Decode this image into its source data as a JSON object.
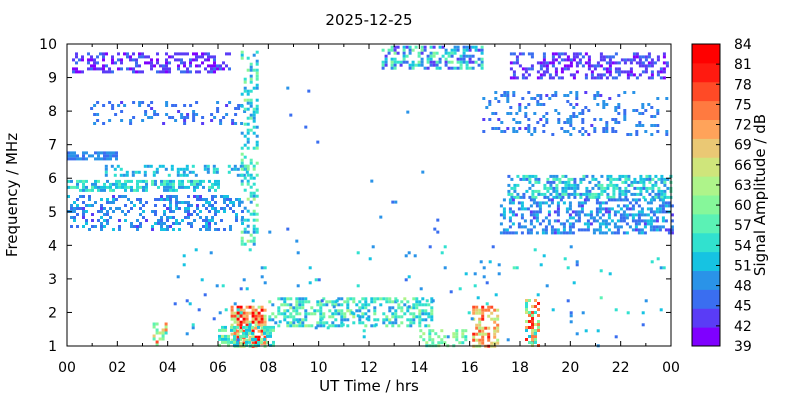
{
  "chart_data": {
    "type": "heatmap",
    "title": "2025-12-25",
    "xlabel": "UT Time / hrs",
    "ylabel": "Frequency / MHz",
    "colorbar_label": "Signal Amplitude / dB",
    "xlim": [
      0,
      24
    ],
    "ylim": [
      1,
      10
    ],
    "x_ticks": [
      "00",
      "02",
      "04",
      "06",
      "08",
      "10",
      "12",
      "14",
      "16",
      "18",
      "20",
      "22",
      "00"
    ],
    "y_ticks": [
      "1",
      "2",
      "3",
      "4",
      "5",
      "6",
      "7",
      "8",
      "9",
      "10"
    ],
    "colorbar_ticks": [
      "39",
      "42",
      "45",
      "48",
      "51",
      "54",
      "57",
      "60",
      "63",
      "66",
      "69",
      "72",
      "75",
      "78",
      "81",
      "84"
    ],
    "colorbar_range": [
      39,
      84
    ],
    "colorscale": [
      "#7f00ff",
      "#5a3cf6",
      "#3a6ef0",
      "#2a93e8",
      "#16c3e2",
      "#31e1cf",
      "#5bf2b5",
      "#86f79a",
      "#aef48a",
      "#cfe57b",
      "#eac874",
      "#ffa35a",
      "#ff7a40",
      "#ff4a26",
      "#ff1a10",
      "#ff0000"
    ],
    "regions": [
      {
        "name": "band-9.5",
        "x": [
          0.2,
          6.4
        ],
        "y": [
          9.15,
          9.75
        ],
        "amp": [
          40,
          46
        ],
        "density": 0.45
      },
      {
        "name": "band-9.5b",
        "x": [
          17.6,
          23.9
        ],
        "y": [
          9.0,
          9.75
        ],
        "amp": [
          40,
          47
        ],
        "density": 0.45
      },
      {
        "name": "band-9.7-mid",
        "x": [
          12.5,
          16.5
        ],
        "y": [
          9.3,
          9.95
        ],
        "amp": [
          42,
          60
        ],
        "density": 0.55
      },
      {
        "name": "band-7.8",
        "x": [
          0.8,
          7.0
        ],
        "y": [
          7.6,
          8.3
        ],
        "amp": [
          44,
          50
        ],
        "density": 0.2
      },
      {
        "name": "band-7.8b",
        "x": [
          16.5,
          23.8
        ],
        "y": [
          7.3,
          8.6
        ],
        "amp": [
          44,
          50
        ],
        "density": 0.2
      },
      {
        "name": "band-6.7",
        "x": [
          0.0,
          2.0
        ],
        "y": [
          6.6,
          6.8
        ],
        "amp": [
          46,
          50
        ],
        "density": 0.8
      },
      {
        "name": "band-6.2",
        "x": [
          1.5,
          7.2
        ],
        "y": [
          6.1,
          6.4
        ],
        "amp": [
          48,
          54
        ],
        "density": 0.4
      },
      {
        "name": "band-5.8",
        "x": [
          0.0,
          6.0
        ],
        "y": [
          5.6,
          5.95
        ],
        "amp": [
          48,
          58
        ],
        "density": 0.6
      },
      {
        "name": "band-5.3",
        "x": [
          0.0,
          7.0
        ],
        "y": [
          4.5,
          5.5
        ],
        "amp": [
          44,
          52
        ],
        "density": 0.35
      },
      {
        "name": "band-5.6b",
        "x": [
          17.5,
          24.0
        ],
        "y": [
          5.4,
          6.1
        ],
        "amp": [
          46,
          58
        ],
        "density": 0.55
      },
      {
        "name": "band-5.0b",
        "x": [
          17.2,
          24.0
        ],
        "y": [
          4.4,
          5.4
        ],
        "amp": [
          44,
          52
        ],
        "density": 0.45
      },
      {
        "name": "vertical-7.2",
        "x": [
          6.9,
          7.5
        ],
        "y": [
          4.0,
          9.8
        ],
        "amp": [
          48,
          62
        ],
        "density": 0.35
      },
      {
        "name": "arc-low",
        "x": [
          8.0,
          14.5
        ],
        "y": [
          1.6,
          2.45
        ],
        "amp": [
          48,
          62
        ],
        "density": 0.55
      },
      {
        "name": "hot-07",
        "x": [
          6.5,
          7.9
        ],
        "y": [
          1.0,
          2.2
        ],
        "amp": [
          60,
          84
        ],
        "density": 0.75
      },
      {
        "name": "hot-07b",
        "x": [
          6.0,
          8.2
        ],
        "y": [
          1.0,
          1.6
        ],
        "amp": [
          50,
          62
        ],
        "density": 0.5
      },
      {
        "name": "hot-16",
        "x": [
          16.1,
          17.1
        ],
        "y": [
          1.0,
          2.2
        ],
        "amp": [
          62,
          80
        ],
        "density": 0.55
      },
      {
        "name": "hot-18",
        "x": [
          18.2,
          18.7
        ],
        "y": [
          1.0,
          2.4
        ],
        "amp": [
          52,
          82
        ],
        "density": 0.55
      },
      {
        "name": "hot-04",
        "x": [
          3.4,
          3.9
        ],
        "y": [
          1.0,
          1.7
        ],
        "amp": [
          52,
          78
        ],
        "density": 0.55
      },
      {
        "name": "low-14",
        "x": [
          14.0,
          15.8
        ],
        "y": [
          1.0,
          1.5
        ],
        "amp": [
          54,
          64
        ],
        "density": 0.5
      },
      {
        "name": "scatter-lowmid",
        "x": [
          4.0,
          23.9
        ],
        "y": [
          1.0,
          4.0
        ],
        "amp": [
          46,
          56
        ],
        "density": 0.02
      },
      {
        "name": "scatter-mid",
        "x": [
          8.0,
          16.0
        ],
        "y": [
          4.0,
          9.0
        ],
        "amp": [
          44,
          50
        ],
        "density": 0.006
      }
    ]
  }
}
